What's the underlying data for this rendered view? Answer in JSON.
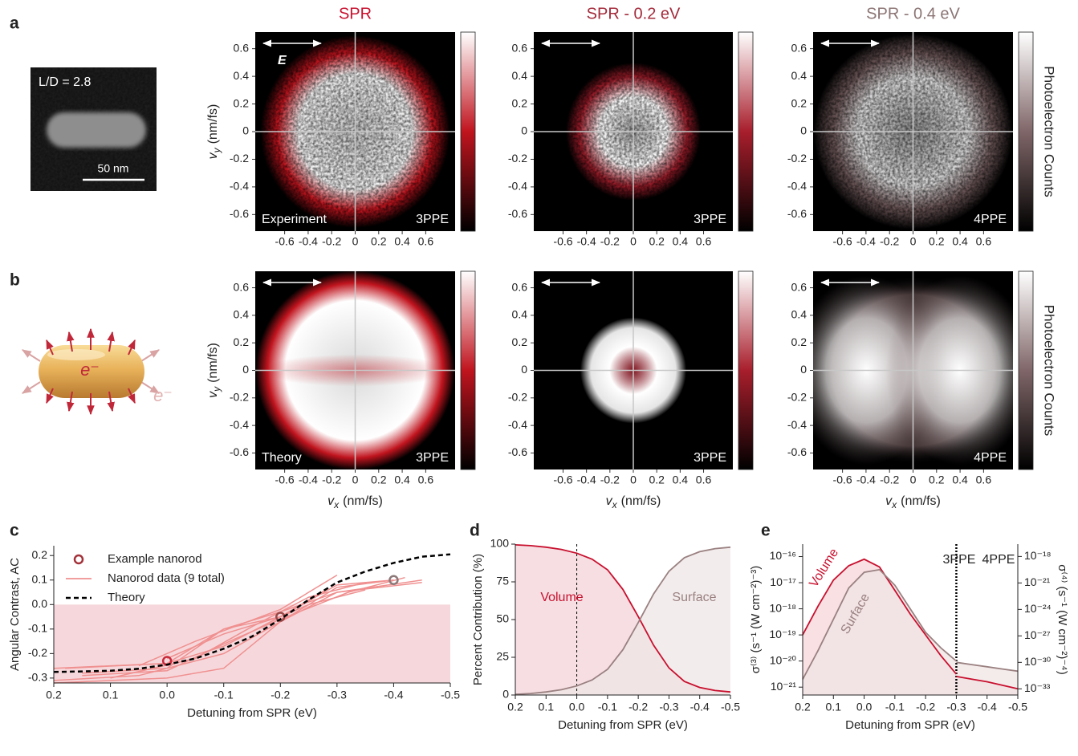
{
  "panel_labels": [
    "a",
    "b",
    "c",
    "d",
    "e"
  ],
  "sem_image": {
    "label": "L/D = 2.8",
    "scale_bar": "50 nm"
  },
  "nanorod_illustration": {
    "inner_label": "e⁻",
    "outer_label": "e⁻"
  },
  "chart_data": [
    {
      "type": "image",
      "title": "SPR",
      "title_color": "#c8102e",
      "colormap": [
        "#000000",
        "#c0141e",
        "#ffffff"
      ],
      "xlim": [
        -0.85,
        0.85
      ],
      "ylim": [
        -0.72,
        0.72
      ],
      "xticks": [
        -0.6,
        -0.4,
        -0.2,
        0,
        0.2,
        0.4,
        0.6
      ],
      "yticks": [
        -0.6,
        -0.4,
        -0.2,
        0,
        0.2,
        0.4,
        0.6
      ],
      "y_label": {
        "var": "v",
        "sub": "y",
        "unit": "(nm/fs)"
      },
      "annotations": [
        {
          "text": "E",
          "position": "top-left"
        },
        {
          "text": "Experiment",
          "position": "bottom-left"
        },
        {
          "text": "3PPE",
          "position": "bottom-right"
        }
      ]
    },
    {
      "type": "image",
      "title": "SPR - 0.2 eV",
      "title_color": "#a32a3a",
      "colormap": [
        "#000000",
        "#a81e2c",
        "#ffffff"
      ],
      "xlim": [
        -0.85,
        0.85
      ],
      "ylim": [
        -0.72,
        0.72
      ],
      "xticks": [
        -0.6,
        -0.4,
        -0.2,
        0,
        0.2,
        0.4,
        0.6
      ],
      "yticks": [
        -0.6,
        -0.4,
        -0.2,
        0,
        0.2,
        0.4,
        0.6
      ],
      "annotations": [
        {
          "text": "3PPE",
          "position": "bottom-right"
        }
      ]
    },
    {
      "type": "image",
      "title": "SPR - 0.4 eV",
      "title_color": "#8c7474",
      "colormap": [
        "#000000",
        "#806668",
        "#ffffff"
      ],
      "xlim": [
        -0.85,
        0.85
      ],
      "ylim": [
        -0.72,
        0.72
      ],
      "xticks": [
        -0.6,
        -0.4,
        -0.2,
        0,
        0.2,
        0.4,
        0.6
      ],
      "yticks": [
        -0.6,
        -0.4,
        -0.2,
        0,
        0.2,
        0.4,
        0.6
      ],
      "colorbar_label": "Photoelectron Counts",
      "annotations": [
        {
          "text": "4PPE",
          "position": "bottom-right"
        }
      ]
    },
    {
      "type": "image",
      "colormap": [
        "#000000",
        "#c0141e",
        "#ffffff"
      ],
      "xlim": [
        -0.85,
        0.85
      ],
      "ylim": [
        -0.72,
        0.72
      ],
      "xticks": [
        -0.6,
        -0.4,
        -0.2,
        0,
        0.2,
        0.4,
        0.6
      ],
      "yticks": [
        -0.6,
        -0.4,
        -0.2,
        0,
        0.2,
        0.4,
        0.6
      ],
      "x_label": {
        "var": "v",
        "sub": "x",
        "unit": "(nm/fs)"
      },
      "y_label": {
        "var": "v",
        "sub": "y",
        "unit": "(nm/fs)"
      },
      "annotations": [
        {
          "text": "Theory",
          "position": "bottom-left"
        },
        {
          "text": "3PPE",
          "position": "bottom-right"
        }
      ]
    },
    {
      "type": "image",
      "colormap": [
        "#000000",
        "#a81e2c",
        "#ffffff"
      ],
      "xlim": [
        -0.85,
        0.85
      ],
      "ylim": [
        -0.72,
        0.72
      ],
      "xticks": [
        -0.6,
        -0.4,
        -0.2,
        0,
        0.2,
        0.4,
        0.6
      ],
      "yticks": [
        -0.6,
        -0.4,
        -0.2,
        0,
        0.2,
        0.4,
        0.6
      ],
      "x_label": {
        "var": "v",
        "sub": "x",
        "unit": "(nm/fs)"
      },
      "annotations": [
        {
          "text": "3PPE",
          "position": "bottom-right"
        }
      ]
    },
    {
      "type": "image",
      "colormap": [
        "#000000",
        "#806668",
        "#ffffff"
      ],
      "xlim": [
        -0.85,
        0.85
      ],
      "ylim": [
        -0.72,
        0.72
      ],
      "xticks": [
        -0.6,
        -0.4,
        -0.2,
        0,
        0.2,
        0.4,
        0.6
      ],
      "yticks": [
        -0.6,
        -0.4,
        -0.2,
        0,
        0.2,
        0.4,
        0.6
      ],
      "x_label": {
        "var": "v",
        "sub": "x",
        "unit": "(nm/fs)"
      },
      "colorbar_label": "Photoelectron Counts",
      "annotations": [
        {
          "text": "4PPE",
          "position": "bottom-right"
        }
      ]
    },
    {
      "type": "line",
      "x_label": "Detuning from SPR (eV)",
      "y_label": "Angular Contrast, AC",
      "xlim": [
        0.2,
        -0.5
      ],
      "ylim": [
        -0.32,
        0.24
      ],
      "xticks": [
        0.2,
        0.1,
        {
          "value": 0,
          "label": "0.0"
        },
        -0.1,
        -0.2,
        -0.3,
        -0.4,
        -0.5
      ],
      "yticks": [
        -0.3,
        -0.2,
        -0.1,
        {
          "value": 0,
          "label": "0.0"
        },
        0.1,
        0.2
      ],
      "shade_below": 0,
      "shade_color": "#f6d8dc",
      "legend": "top-left",
      "series": [
        {
          "name": "Example nanorod",
          "marker": "circle",
          "color": "#a3323a",
          "x": [
            0,
            -0.2,
            -0.4
          ],
          "values": [
            -0.23,
            -0.05,
            0.1
          ],
          "colors": [
            "#c8283a",
            "#9a4848",
            "#8c7878"
          ]
        },
        {
          "name": "Nanorod data (9 total)",
          "color": "#f09090",
          "lines": [
            {
              "x": [
                0.18,
                0,
                -0.1,
                -0.2,
                -0.3,
                -0.4
              ],
              "values": [
                -0.26,
                -0.24,
                -0.17,
                -0.05,
                0.08,
                0.1
              ]
            },
            {
              "x": [
                0.2,
                0.05,
                -0.1,
                -0.2,
                -0.3,
                -0.45
              ],
              "values": [
                -0.31,
                -0.29,
                -0.2,
                -0.07,
                0.05,
                0.1
              ]
            },
            {
              "x": [
                0.15,
                0,
                -0.1,
                -0.2,
                -0.28
              ],
              "values": [
                -0.28,
                -0.26,
                -0.1,
                -0.05,
                0.06
              ]
            },
            {
              "x": [
                0.1,
                -0.05,
                -0.15,
                -0.25,
                -0.35
              ],
              "values": [
                -0.3,
                -0.22,
                -0.09,
                0.03,
                0.09
              ]
            },
            {
              "x": [
                0.2,
                0,
                -0.1,
                -0.2,
                -0.3,
                -0.4
              ],
              "values": [
                -0.32,
                -0.3,
                -0.26,
                -0.07,
                0.07,
                0.1
              ]
            },
            {
              "x": [
                0.05,
                -0.05,
                -0.2,
                -0.3
              ],
              "values": [
                -0.25,
                -0.15,
                -0.02,
                0.12
              ]
            },
            {
              "x": [
                0,
                -0.1,
                -0.2,
                -0.25,
                -0.35
              ],
              "values": [
                -0.22,
                -0.12,
                -0.05,
                0,
                0.06
              ]
            },
            {
              "x": [
                0.2,
                0.1,
                0,
                -0.1,
                -0.2,
                -0.3,
                -0.45
              ],
              "values": [
                -0.26,
                -0.25,
                -0.24,
                -0.1,
                -0.03,
                0.05,
                0.09
              ]
            },
            {
              "x": [
                0.15,
                0,
                -0.12,
                -0.2,
                -0.32,
                -0.42
              ],
              "values": [
                -0.29,
                -0.27,
                -0.14,
                -0.06,
                0.05,
                0.11
              ]
            }
          ]
        },
        {
          "name": "Theory",
          "color": "#000000",
          "dash": true,
          "x": [
            0.2,
            0.15,
            0.1,
            0.05,
            0,
            -0.05,
            -0.1,
            -0.15,
            -0.2,
            -0.25,
            -0.3,
            -0.35,
            -0.4,
            -0.45,
            -0.5
          ],
          "values": [
            -0.275,
            -0.273,
            -0.27,
            -0.262,
            -0.245,
            -0.22,
            -0.18,
            -0.13,
            -0.06,
            0.02,
            0.09,
            0.135,
            0.17,
            0.195,
            0.205
          ]
        }
      ]
    },
    {
      "type": "area",
      "x_label": "Detuning from SPR (eV)",
      "y_label": "Percent Contribution (%)",
      "xlim": [
        0.2,
        -0.5
      ],
      "ylim": [
        0,
        100
      ],
      "xticks": [
        0.2,
        0.1,
        {
          "value": 0,
          "label": "0.0"
        },
        -0.1,
        -0.2,
        -0.3,
        -0.4,
        -0.5
      ],
      "yticks": [
        0,
        25,
        50,
        75,
        100
      ],
      "vline": 0,
      "series": [
        {
          "name": "Volume",
          "color": "#c8102e",
          "fill": "#f3d3d8",
          "x": [
            0.2,
            0.15,
            0.1,
            0.05,
            0,
            -0.05,
            -0.1,
            -0.15,
            -0.2,
            -0.25,
            -0.3,
            -0.35,
            -0.4,
            -0.45,
            -0.5
          ],
          "values": [
            99.5,
            99,
            98,
            96.5,
            94,
            90,
            83,
            70,
            52,
            33,
            18,
            9,
            5,
            3,
            2
          ]
        },
        {
          "name": "Surface",
          "color": "#9a8080",
          "fill": "#efe5e5",
          "x": [
            0.2,
            0.15,
            0.1,
            0.05,
            0,
            -0.05,
            -0.1,
            -0.15,
            -0.2,
            -0.25,
            -0.3,
            -0.35,
            -0.4,
            -0.45,
            -0.5
          ],
          "values": [
            0.5,
            1,
            2,
            3.5,
            6,
            10,
            17,
            30,
            48,
            67,
            82,
            91,
            95,
            97,
            98
          ]
        }
      ]
    },
    {
      "type": "line",
      "log_y": true,
      "x_label": "Detuning from SPR (eV)",
      "y_label": "σ⁽³⁾ (s⁻¹ (W cm⁻²)⁻³)",
      "y2_label": "σ⁽⁴⁾ (s⁻¹ (W cm⁻²)⁻⁴)",
      "xlim": [
        0.2,
        -0.5
      ],
      "ylim": [
        5e-22,
        3e-16
      ],
      "y2lim": [
        2e-34,
        2.5e-17
      ],
      "xticks": [
        0.2,
        0.1,
        {
          "value": 0,
          "label": "0.0"
        },
        -0.1,
        -0.2,
        -0.3,
        -0.4,
        -0.5
      ],
      "yticks": [
        {
          "value": 1e-21,
          "label": "10⁻²¹"
        },
        {
          "value": 1e-20,
          "label": "10⁻²⁰"
        },
        {
          "value": 1e-19,
          "label": "10⁻¹⁹"
        },
        {
          "value": 1e-18,
          "label": "10⁻¹⁸"
        },
        {
          "value": 1e-17,
          "label": "10⁻¹⁷"
        },
        {
          "value": 1e-16,
          "label": "10⁻¹⁶"
        }
      ],
      "y2ticks": [
        {
          "value": 1e-33,
          "label": "10⁻³³"
        },
        {
          "value": 1e-30,
          "label": "10⁻³⁰"
        },
        {
          "value": 1e-27,
          "label": "10⁻²⁷"
        },
        {
          "value": 1e-24,
          "label": "10⁻²⁴"
        },
        {
          "value": 1e-21,
          "label": "10⁻²¹"
        },
        {
          "value": 1e-18,
          "label": "10⁻¹⁸"
        }
      ],
      "vline": -0.3,
      "annotations": [
        "3PPE",
        "4PPE"
      ],
      "series": [
        {
          "name": "Volume",
          "color": "#c8102e",
          "fill": "#f5d6da",
          "x": [
            0.2,
            0.15,
            0.1,
            0.05,
            0,
            -0.05,
            -0.1,
            -0.15,
            -0.2,
            -0.25,
            -0.3
          ],
          "values": [
            1e-19,
            1.26e-18,
            1.26e-17,
            4.47e-17,
            7.94e-17,
            3.98e-17,
            5.01e-18,
            6.31e-19,
            1e-19,
            1.58e-20,
            3.16e-21
          ]
        },
        {
          "name": "Surface",
          "color": "#9a8080",
          "fill": "#f0e4e4",
          "x": [
            0.2,
            0.15,
            0.1,
            0.05,
            0,
            -0.05,
            -0.1,
            -0.15,
            -0.2,
            -0.25,
            -0.3
          ],
          "values": [
            2e-21,
            2.51e-20,
            3.98e-19,
            6.31e-18,
            2.51e-17,
            3.16e-17,
            7.94e-18,
            1e-18,
            1.26e-19,
            3.16e-20,
            1e-20
          ]
        },
        {
          "color": "#c8102e",
          "fill": "#f5d6da",
          "axis": "y2",
          "x": [
            -0.3,
            -0.35,
            -0.4,
            -0.45,
            -0.5
          ],
          "values": [
            2.51e-32,
            1.26e-32,
            6.31e-33,
            2.51e-33,
            1e-33
          ]
        },
        {
          "color": "#9a8080",
          "fill": "#f0e4e4",
          "axis": "y2",
          "x": [
            -0.3,
            -0.35,
            -0.4,
            -0.45,
            -0.5
          ],
          "values": [
            1e-30,
            5.62e-31,
            3.16e-31,
            1.78e-31,
            1e-31
          ]
        }
      ]
    }
  ]
}
